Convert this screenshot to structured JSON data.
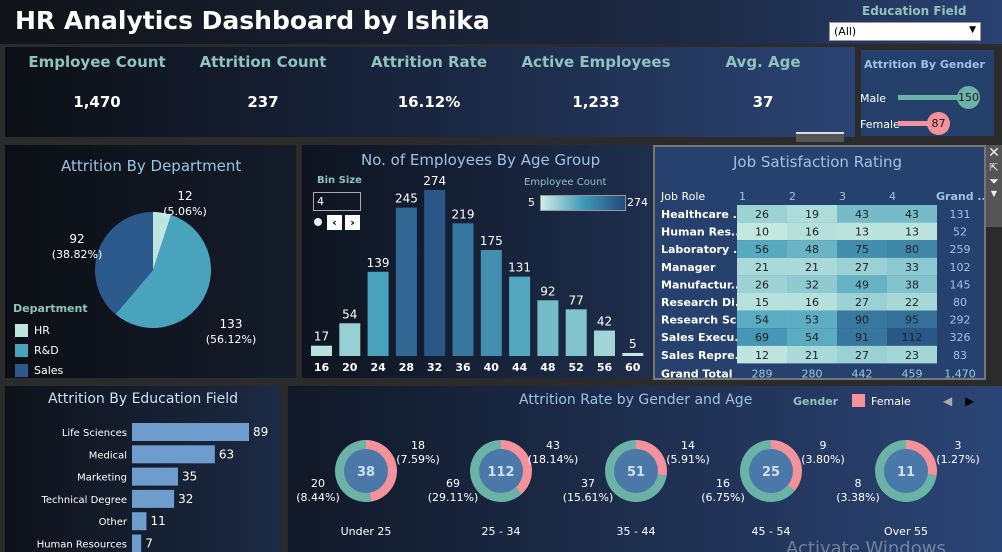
{
  "header": {
    "title": "HR Analytics Dashboard by Ishika"
  },
  "filter": {
    "label": "Education Field",
    "value": "(All)"
  },
  "kpis": [
    {
      "label": "Employee Count",
      "value": "1,470"
    },
    {
      "label": "Attrition Count",
      "value": "237"
    },
    {
      "label": "Attrition Rate",
      "value": "16.12%"
    },
    {
      "label": "Active Employees",
      "value": "1,233"
    },
    {
      "label": "Avg. Age",
      "value": "37"
    }
  ],
  "gender": {
    "title": "Attrition By Gender",
    "items": [
      {
        "label": "Male",
        "value": 150,
        "text": "150"
      },
      {
        "label": "Female",
        "value": 87,
        "text": "87"
      }
    ],
    "colors": {
      "Male": "#6bb3a6",
      "Female": "#f4929c"
    }
  },
  "department": {
    "title": "Attrition By Department",
    "legend_title": "Department",
    "chart_data": {
      "type": "pie",
      "slices": [
        {
          "name": "HR",
          "value": 12,
          "pct": "(5.06%)",
          "color": "#bfe6de"
        },
        {
          "name": "R&D",
          "value": 133,
          "pct": "(56.12%)",
          "color": "#4aa3bd"
        },
        {
          "name": "Sales",
          "value": 92,
          "pct": "(38.82%)",
          "color": "#2c5a8c"
        }
      ]
    }
  },
  "age": {
    "title": "No. of Employees By Age Group",
    "bin_label": "Bin Size",
    "bin_value": "4",
    "legend_title": "Employee Count",
    "legend_min": "5",
    "legend_max": "274",
    "chart_data": {
      "type": "bar",
      "categories": [
        "16",
        "20",
        "24",
        "28",
        "32",
        "36",
        "40",
        "44",
        "48",
        "52",
        "56",
        "60"
      ],
      "values": [
        17,
        54,
        139,
        245,
        274,
        219,
        175,
        131,
        92,
        77,
        42,
        5
      ]
    }
  },
  "job": {
    "title": "Job Satisfaction Rating",
    "row_header": "Job Role",
    "columns": [
      "1",
      "2",
      "3",
      "4",
      "Grand .."
    ],
    "chart_data": {
      "type": "heatmap",
      "rows": [
        {
          "role": "Healthcare ..",
          "values": [
            26,
            19,
            43,
            43
          ],
          "total": "131"
        },
        {
          "role": "Human Res..",
          "values": [
            10,
            16,
            13,
            13
          ],
          "total": "52"
        },
        {
          "role": "Laboratory ..",
          "values": [
            56,
            48,
            75,
            80
          ],
          "total": "259"
        },
        {
          "role": "Manager",
          "values": [
            21,
            21,
            27,
            33
          ],
          "total": "102"
        },
        {
          "role": "Manufactur..",
          "values": [
            26,
            32,
            49,
            38
          ],
          "total": "145"
        },
        {
          "role": "Research Di..",
          "values": [
            15,
            16,
            27,
            22
          ],
          "total": "80"
        },
        {
          "role": "Research Sc..",
          "values": [
            54,
            53,
            90,
            95
          ],
          "total": "292"
        },
        {
          "role": "Sales Execu..",
          "values": [
            69,
            54,
            91,
            112
          ],
          "total": "326"
        },
        {
          "role": "Sales Repre..",
          "values": [
            12,
            21,
            27,
            23
          ],
          "total": "83"
        }
      ],
      "grand_total": {
        "label": "Grand Total",
        "values": [
          "289",
          "280",
          "442",
          "459"
        ],
        "total": "1,470"
      }
    }
  },
  "education": {
    "title": "Attrition By Education Field",
    "chart_data": {
      "type": "bar",
      "categories": [
        "Life Sciences",
        "Medical",
        "Marketing",
        "Technical Degree",
        "Other",
        "Human Resources"
      ],
      "values": [
        89,
        63,
        35,
        32,
        11,
        7
      ]
    }
  },
  "gender_age": {
    "title": "Attrition Rate by Gender and Age",
    "legend_title": "Gender",
    "legend_item": "Female",
    "chart_data": {
      "type": "pie",
      "groups": [
        {
          "label": "Under 25",
          "total": 38,
          "female": 18,
          "female_pct": "(7.59%)",
          "male": 20,
          "male_pct": "(8.44%)"
        },
        {
          "label": "25 - 34",
          "total": 112,
          "female": 43,
          "female_pct": "(18.14%)",
          "male": 69,
          "male_pct": "(29.11%)"
        },
        {
          "label": "35 - 44",
          "total": 51,
          "female": 14,
          "female_pct": "(5.91%)",
          "male": 37,
          "male_pct": "(15.61%)"
        },
        {
          "label": "45 - 54",
          "total": 25,
          "female": 9,
          "female_pct": "(3.80%)",
          "male": 16,
          "male_pct": "(6.75%)"
        },
        {
          "label": "Over 55",
          "total": 11,
          "female": 3,
          "female_pct": "(1.27%)",
          "male": 8,
          "male_pct": "(3.38%)"
        }
      ]
    }
  },
  "watermark": "Activate Windows"
}
